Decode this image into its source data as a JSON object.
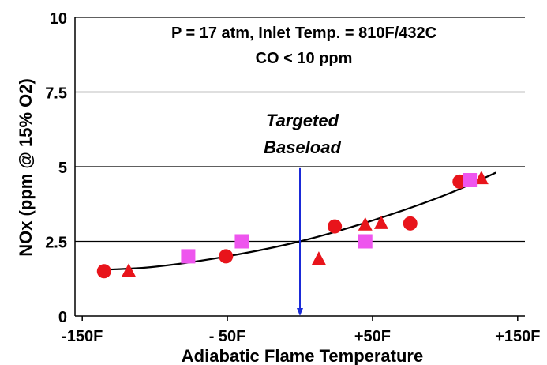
{
  "chart_data": {
    "type": "scatter",
    "title_lines": [
      "P = 17 atm, Inlet Temp. = 810F/432C",
      "CO < 10 ppm"
    ],
    "xlabel": "Adiabatic Flame Temperature",
    "ylabel": "NOx (ppm @ 15% O2)",
    "xlim": [
      -155,
      155
    ],
    "ylim": [
      0,
      10
    ],
    "x_ticks": [
      {
        "value": -150,
        "label": "-150F"
      },
      {
        "value": -50,
        "label": "- 50F"
      },
      {
        "value": 50,
        "label": "+50F"
      },
      {
        "value": 150,
        "label": "+150F"
      }
    ],
    "y_ticks": [
      {
        "value": 0,
        "label": "0"
      },
      {
        "value": 2.5,
        "label": "2.5"
      },
      {
        "value": 5,
        "label": "5"
      },
      {
        "value": 7.5,
        "label": "7.5"
      },
      {
        "value": 10,
        "label": "10"
      }
    ],
    "grid": "horizontal",
    "series": [
      {
        "marker": "circle",
        "color": "#e8141b",
        "points": [
          [
            -135,
            1.5
          ],
          [
            -51,
            2.0
          ],
          [
            24,
            3.0
          ],
          [
            76,
            3.1
          ],
          [
            110,
            4.5
          ]
        ]
      },
      {
        "marker": "triangle",
        "color": "#e8141b",
        "points": [
          [
            -118,
            1.5
          ],
          [
            13,
            1.9
          ],
          [
            45,
            3.05
          ],
          [
            56,
            3.1
          ],
          [
            125,
            4.6
          ]
        ]
      },
      {
        "marker": "square",
        "color": "#ee55ee",
        "points": [
          [
            -77,
            2.0
          ],
          [
            -40,
            2.5
          ],
          [
            45,
            2.5
          ],
          [
            117,
            4.55
          ]
        ]
      }
    ],
    "trendline": {
      "color": "#000000",
      "points": [
        [
          -135,
          1.55
        ],
        [
          -100,
          1.65
        ],
        [
          -50,
          2.0
        ],
        [
          0,
          2.5
        ],
        [
          50,
          3.2
        ],
        [
          100,
          4.05
        ],
        [
          135,
          4.8
        ]
      ]
    },
    "annotation": {
      "lines": [
        "Targeted",
        "Baseload"
      ],
      "arrow_x": 0,
      "arrow_from_y": 4.95,
      "arrow_to_y": 0,
      "arrow_color": "#1a2ad8"
    }
  }
}
